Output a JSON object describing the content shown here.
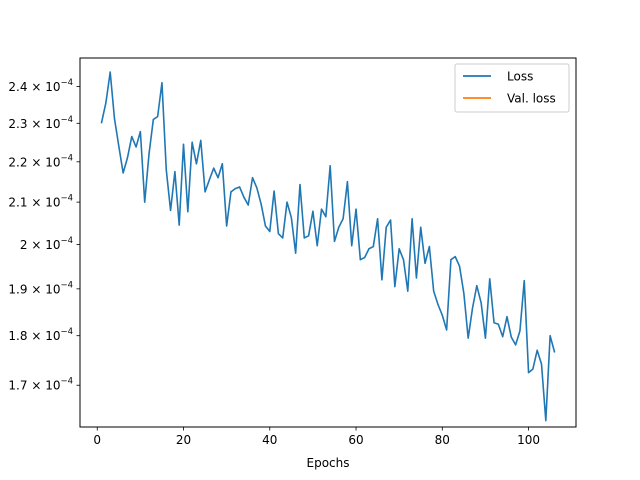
{
  "chart_data": {
    "type": "line",
    "title": "",
    "xlabel": "Epochs",
    "ylabel": "",
    "yscale": "log",
    "xlim": [
      -4,
      111
    ],
    "ylim": [
      0.000162,
      0.000248
    ],
    "xticks": [
      0,
      20,
      40,
      60,
      80,
      100
    ],
    "xtick_labels": [
      "0",
      "20",
      "40",
      "60",
      "80",
      "100"
    ],
    "yticks": [
      0.00017,
      0.00018,
      0.00019,
      0.0002,
      0.00021,
      0.00022,
      0.00023,
      0.00024
    ],
    "ytick_mantissas": [
      "1.7",
      "1.8",
      "1.9",
      "2",
      "2.1",
      "2.2",
      "2.3",
      "2.4"
    ],
    "ytick_base": "10",
    "ytick_exponent": "−4",
    "grid": false,
    "legend": {
      "position": "top-right",
      "entries": [
        "Loss",
        "Val. loss"
      ]
    },
    "series": [
      {
        "name": "Loss",
        "color": "#1f77b4",
        "x": [
          1,
          2,
          3,
          4,
          5,
          6,
          7,
          8,
          9,
          10,
          11,
          12,
          13,
          14,
          15,
          16,
          17,
          18,
          19,
          20,
          21,
          22,
          23,
          24,
          25,
          26,
          27,
          28,
          29,
          30,
          31,
          32,
          33,
          34,
          35,
          36,
          37,
          38,
          39,
          40,
          41,
          42,
          43,
          44,
          45,
          46,
          47,
          48,
          49,
          50,
          51,
          52,
          53,
          54,
          55,
          56,
          57,
          58,
          59,
          60,
          61,
          62,
          63,
          64,
          65,
          66,
          67,
          68,
          69,
          70,
          71,
          72,
          73,
          74,
          75,
          76,
          77,
          78,
          79,
          80,
          81,
          82,
          83,
          84,
          85,
          86,
          87,
          88,
          89,
          90,
          91,
          92,
          93,
          94,
          95,
          96,
          97,
          98,
          99,
          100,
          101,
          102,
          103,
          104,
          105,
          106
        ],
        "values": [
          0.0002302,
          0.0002355,
          0.000244,
          0.0002312,
          0.000224,
          0.0002172,
          0.000221,
          0.0002265,
          0.0002238,
          0.0002278,
          0.00021,
          0.000222,
          0.000231,
          0.0002318,
          0.000241,
          0.000218,
          0.000208,
          0.0002175,
          0.0002045,
          0.0002245,
          0.0002077,
          0.000225,
          0.0002195,
          0.0002255,
          0.0002125,
          0.0002155,
          0.0002184,
          0.000216,
          0.0002195,
          0.0002043,
          0.0002125,
          0.0002133,
          0.0002137,
          0.0002112,
          0.0002093,
          0.000216,
          0.0002135,
          0.0002095,
          0.0002043,
          0.000203,
          0.0002127,
          0.0002025,
          0.0002015,
          0.00021,
          0.0002063,
          0.000198,
          0.0002143,
          0.0002015,
          0.000202,
          0.0002078,
          0.0001997,
          0.0002083,
          0.0002065,
          0.000219,
          0.0002007,
          0.000204,
          0.000206,
          0.000215,
          0.0001997,
          0.0002083,
          0.0001965,
          0.000197,
          0.000199,
          0.0001995,
          0.000206,
          0.000192,
          0.000204,
          0.0002057,
          0.0001905,
          0.000199,
          0.0001965,
          0.0001895,
          0.000206,
          0.0001924,
          0.000204,
          0.0001957,
          0.0001995,
          0.0001895,
          0.0001866,
          0.0001843,
          0.0001812,
          0.0001965,
          0.0001972,
          0.000195,
          0.000189,
          0.0001795,
          0.0001858,
          0.0001907,
          0.000187,
          0.0001795,
          0.0001922,
          0.0001827,
          0.0001824,
          0.0001798,
          0.000184,
          0.0001797,
          0.0001781,
          0.000181,
          0.0001918,
          0.0001725,
          0.0001732,
          0.000177,
          0.0001742,
          0.0001632,
          0.00018,
          0.0001767
        ]
      },
      {
        "name": "Val. loss",
        "color": "#ff7f0e",
        "x": [],
        "values": []
      }
    ]
  }
}
